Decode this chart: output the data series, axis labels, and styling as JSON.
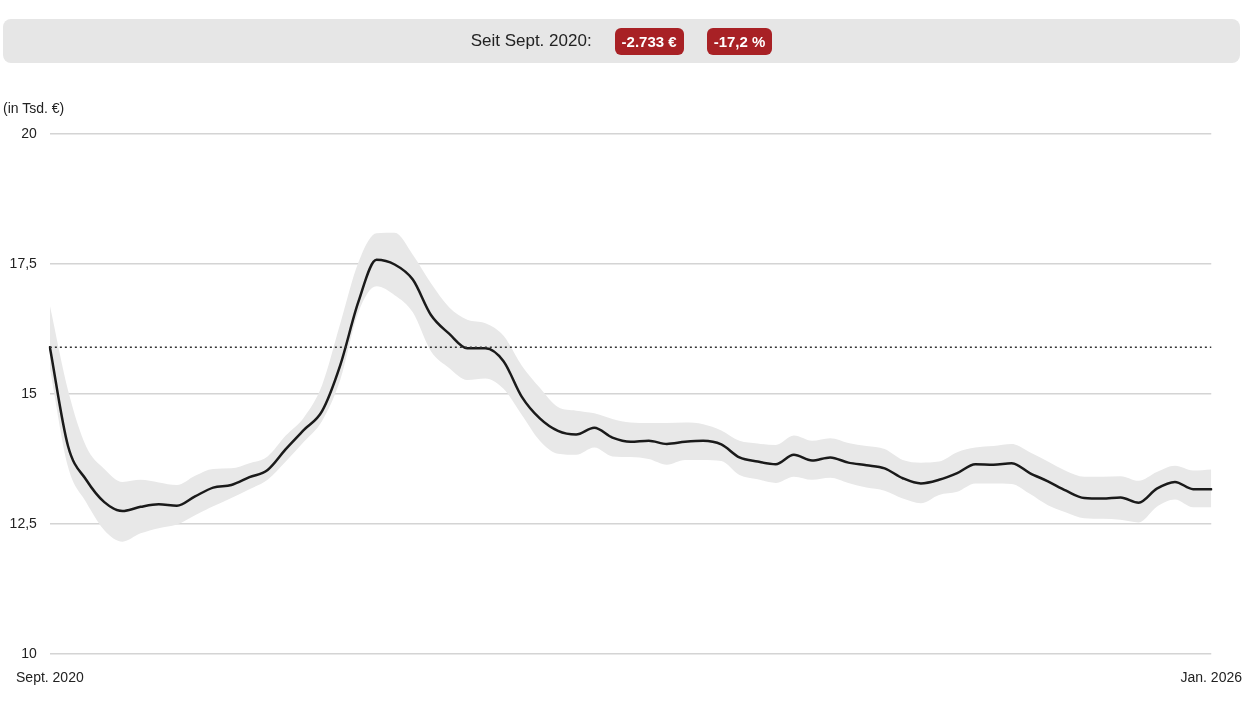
{
  "chart_data": {
    "type": "line",
    "title": "Seit Sept. 2020:",
    "annotations": [
      "-2.733 €",
      "-17,2 %"
    ],
    "ylabel": "(in Tsd. €)",
    "categories": [
      "Sept. 2020",
      null,
      null,
      null,
      null,
      null,
      null,
      null,
      null,
      null,
      null,
      null,
      null,
      null,
      null,
      null,
      null,
      null,
      null,
      null,
      null,
      null,
      null,
      null,
      null,
      null,
      null,
      null,
      null,
      null,
      null,
      null,
      null,
      null,
      null,
      null,
      null,
      null,
      null,
      null,
      null,
      null,
      null,
      null,
      null,
      null,
      null,
      null,
      null,
      null,
      null,
      null,
      null,
      null,
      null,
      null,
      null,
      null,
      null,
      null,
      null,
      null,
      null,
      null,
      "Jan. 2026"
    ],
    "series": [
      {
        "color": "#1a1a1a",
        "values": [
          15.9,
          14.0,
          13.35,
          12.92,
          12.75,
          12.83,
          12.88,
          12.85,
          13.03,
          13.2,
          13.25,
          13.4,
          13.54,
          13.94,
          14.31,
          14.67,
          15.55,
          16.77,
          17.58,
          17.49,
          17.2,
          16.52,
          16.16,
          15.88,
          15.88,
          15.63,
          14.95,
          14.53,
          14.29,
          14.22,
          14.35,
          14.16,
          14.08,
          14.1,
          14.04,
          14.08,
          14.1,
          14.03,
          13.78,
          13.7,
          13.65,
          13.83,
          13.72,
          13.78,
          13.68,
          13.63,
          13.57,
          13.38,
          13.28,
          13.35,
          13.48,
          13.65,
          13.64,
          13.67,
          13.48,
          13.32,
          13.14,
          13.0,
          12.99,
          13.01,
          12.91,
          13.18,
          13.31,
          13.17,
          13.17
        ],
        "upper": [
          16.7,
          15.07,
          13.99,
          13.56,
          13.31,
          13.35,
          13.3,
          13.25,
          13.43,
          13.56,
          13.57,
          13.67,
          13.8,
          14.2,
          14.55,
          15.17,
          16.35,
          17.53,
          18.09,
          18.1,
          17.68,
          17.13,
          16.67,
          16.43,
          16.36,
          16.12,
          15.55,
          15.12,
          14.75,
          14.68,
          14.63,
          14.52,
          14.45,
          14.44,
          14.44,
          14.45,
          14.42,
          14.3,
          14.1,
          14.05,
          14.02,
          14.2,
          14.1,
          14.15,
          14.06,
          14.0,
          13.94,
          13.73,
          13.68,
          13.7,
          13.88,
          13.97,
          14.0,
          14.04,
          13.88,
          13.7,
          13.52,
          13.41,
          13.41,
          13.42,
          13.33,
          13.5,
          13.62,
          13.53,
          13.55
        ],
        "lower": [
          15.5,
          13.6,
          12.92,
          12.38,
          12.16,
          12.32,
          12.42,
          12.49,
          12.67,
          12.84,
          13.0,
          13.17,
          13.35,
          13.7,
          14.08,
          14.48,
          15.27,
          16.57,
          17.07,
          16.9,
          16.57,
          15.82,
          15.5,
          15.27,
          15.3,
          15.1,
          14.6,
          14.1,
          13.85,
          13.83,
          13.97,
          13.8,
          13.79,
          13.75,
          13.64,
          13.73,
          13.73,
          13.71,
          13.44,
          13.36,
          13.29,
          13.41,
          13.35,
          13.39,
          13.29,
          13.2,
          13.14,
          12.99,
          12.9,
          13.06,
          13.12,
          13.28,
          13.28,
          13.27,
          13.08,
          12.86,
          12.72,
          12.61,
          12.6,
          12.58,
          12.53,
          12.83,
          12.97,
          12.82,
          12.82
        ]
      }
    ],
    "ylim": [
      10,
      20
    ],
    "yticks": [
      10,
      {
        "value": 12.5,
        "label": "12,5"
      },
      15,
      {
        "value": 17.5,
        "label": "17,5"
      },
      20
    ],
    "grid": "y",
    "ref_lines": [
      {
        "axis": "y",
        "value": 15.9,
        "line_style": "dotted",
        "color": "#333333"
      }
    ]
  }
}
